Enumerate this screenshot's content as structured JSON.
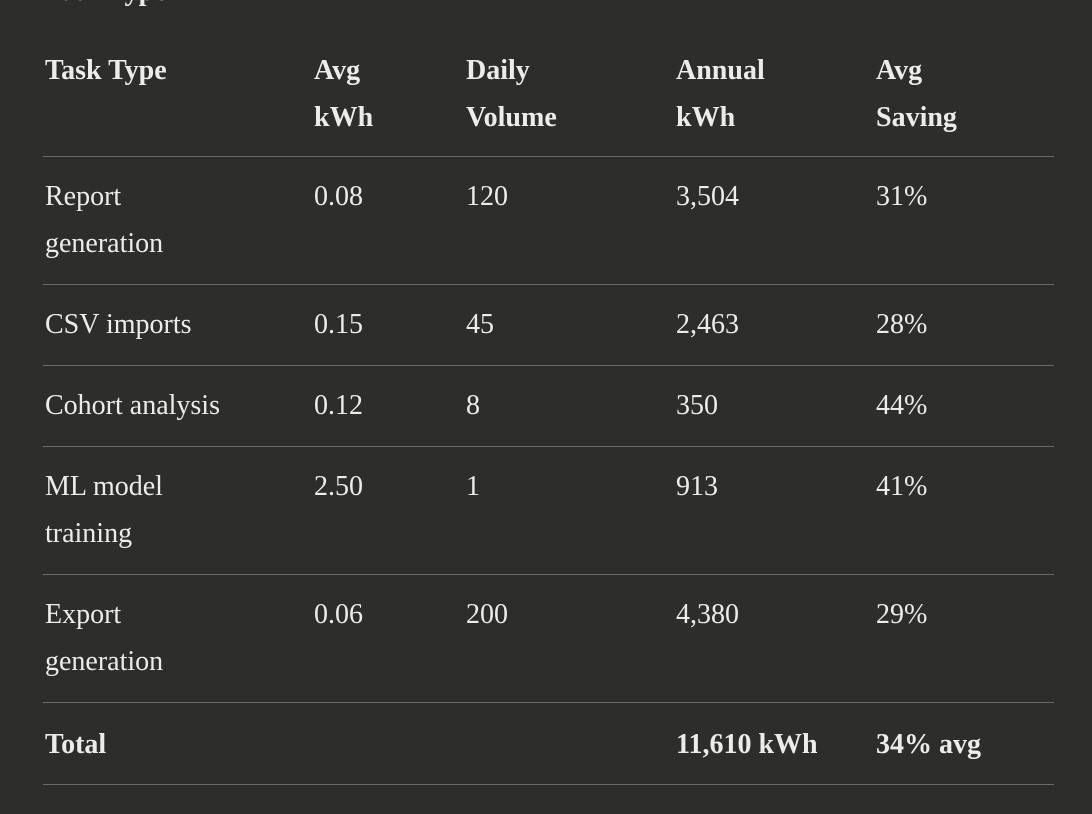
{
  "heading_partial": "Task Type",
  "table": {
    "headers": [
      [
        "Task Type"
      ],
      [
        "Avg",
        "kWh"
      ],
      [
        "Daily",
        "Volume"
      ],
      [
        "Annual",
        "kWh"
      ],
      [
        "Avg",
        "Saving"
      ]
    ],
    "rows": [
      {
        "task": [
          "Report",
          "generation"
        ],
        "avg_kwh": "0.08",
        "daily_volume": "120",
        "annual_kwh": "3,504",
        "avg_saving": "31%"
      },
      {
        "task": [
          "CSV imports"
        ],
        "avg_kwh": "0.15",
        "daily_volume": "45",
        "annual_kwh": "2,463",
        "avg_saving": "28%"
      },
      {
        "task": [
          "Cohort analysis"
        ],
        "avg_kwh": "0.12",
        "daily_volume": "8",
        "annual_kwh": "350",
        "avg_saving": "44%"
      },
      {
        "task": [
          "ML model",
          "training"
        ],
        "avg_kwh": "2.50",
        "daily_volume": "1",
        "annual_kwh": "913",
        "avg_saving": "41%"
      },
      {
        "task": [
          "Export",
          "generation"
        ],
        "avg_kwh": "0.06",
        "daily_volume": "200",
        "annual_kwh": "4,380",
        "avg_saving": "29%"
      }
    ],
    "total": {
      "label": "Total",
      "annual_kwh": "11,610 kWh",
      "avg_saving": "34% avg"
    }
  }
}
